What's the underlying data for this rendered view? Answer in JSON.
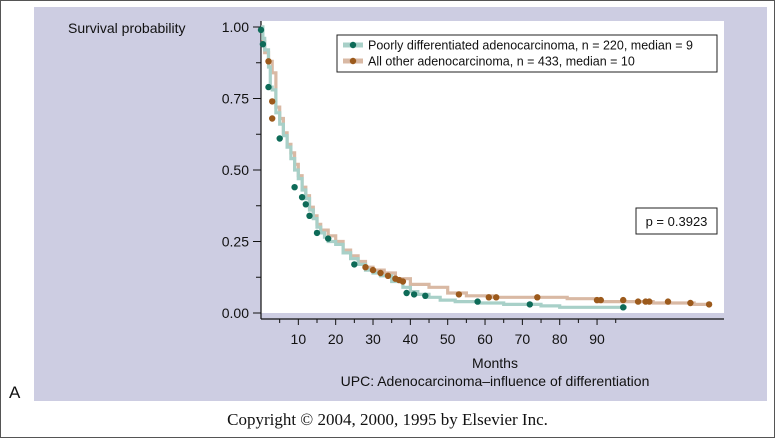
{
  "figure": {
    "panel_letter": "A",
    "copyright": "Copyright © 2004, 2000, 1995 by Elsevier Inc."
  },
  "chart_data": {
    "type": "line",
    "subtype": "kaplan-meier survival curve",
    "title": "UPC: Adenocarcinoma–influence of differentiation",
    "xlabel": "Months",
    "ylabel": "Survival probability",
    "xlim": [
      0,
      124
    ],
    "ylim": [
      0,
      1
    ],
    "x_ticks": [
      10,
      20,
      30,
      40,
      50,
      60,
      70,
      80,
      90
    ],
    "y_ticks": [
      0,
      0.25,
      0.5,
      0.75,
      1.0
    ],
    "y_tick_labels": [
      "0.00",
      "0.25",
      "0.50",
      "0.75",
      "1.00"
    ],
    "grid": false,
    "legend_position": "top-right",
    "annotation": "p = 0.3923",
    "series": [
      {
        "name": "Poorly differentiated adenocarcinoma, n = 220, median = 9",
        "line_color": "#a8d0c8",
        "marker_color": "#0e6b58",
        "steps": [
          [
            0,
            1.0
          ],
          [
            0.5,
            0.96
          ],
          [
            1,
            0.92
          ],
          [
            2,
            0.86
          ],
          [
            2.5,
            0.79
          ],
          [
            3,
            0.78
          ],
          [
            4,
            0.7
          ],
          [
            5,
            0.66
          ],
          [
            6,
            0.62
          ],
          [
            7,
            0.58
          ],
          [
            8,
            0.54
          ],
          [
            9,
            0.5
          ],
          [
            10,
            0.47
          ],
          [
            11,
            0.43
          ],
          [
            12,
            0.4
          ],
          [
            13,
            0.36
          ],
          [
            14,
            0.33
          ],
          [
            15,
            0.3
          ],
          [
            16,
            0.28
          ],
          [
            17,
            0.265
          ],
          [
            18,
            0.25
          ],
          [
            20,
            0.24
          ],
          [
            22,
            0.21
          ],
          [
            24,
            0.19
          ],
          [
            26,
            0.17
          ],
          [
            28,
            0.15
          ],
          [
            30,
            0.14
          ],
          [
            32,
            0.13
          ],
          [
            35,
            0.11
          ],
          [
            38,
            0.09
          ],
          [
            40,
            0.075
          ],
          [
            42,
            0.065
          ],
          [
            45,
            0.055
          ],
          [
            48,
            0.045
          ],
          [
            52,
            0.04
          ],
          [
            58,
            0.035
          ],
          [
            65,
            0.03
          ],
          [
            72,
            0.03
          ],
          [
            75,
            0.025
          ],
          [
            80,
            0.02
          ],
          [
            90,
            0.02
          ],
          [
            98,
            0.02
          ]
        ],
        "censor_points": [
          [
            0,
            0.99
          ],
          [
            0.5,
            0.94
          ],
          [
            2,
            0.79
          ],
          [
            5,
            0.61
          ],
          [
            9,
            0.44
          ],
          [
            11,
            0.405
          ],
          [
            12,
            0.38
          ],
          [
            13,
            0.34
          ],
          [
            15,
            0.28
          ],
          [
            18,
            0.26
          ],
          [
            25,
            0.17
          ],
          [
            39,
            0.07
          ],
          [
            41,
            0.065
          ],
          [
            44,
            0.06
          ],
          [
            58,
            0.04
          ],
          [
            72,
            0.03
          ],
          [
            97,
            0.02
          ]
        ]
      },
      {
        "name": "All other adenocarcinoma, n = 433, median = 10",
        "line_color": "#d9b9a4",
        "marker_color": "#9c5a1c",
        "steps": [
          [
            0,
            1.0
          ],
          [
            0.5,
            0.95
          ],
          [
            1,
            0.91
          ],
          [
            2,
            0.88
          ],
          [
            3,
            0.84
          ],
          [
            4,
            0.72
          ],
          [
            5,
            0.68
          ],
          [
            6,
            0.63
          ],
          [
            7,
            0.59
          ],
          [
            8,
            0.56
          ],
          [
            9,
            0.52
          ],
          [
            10,
            0.48
          ],
          [
            11,
            0.44
          ],
          [
            12,
            0.41
          ],
          [
            13,
            0.37
          ],
          [
            14,
            0.34
          ],
          [
            15,
            0.31
          ],
          [
            16,
            0.29
          ],
          [
            18,
            0.27
          ],
          [
            20,
            0.25
          ],
          [
            22,
            0.22
          ],
          [
            24,
            0.2
          ],
          [
            26,
            0.18
          ],
          [
            28,
            0.16
          ],
          [
            30,
            0.15
          ],
          [
            33,
            0.14
          ],
          [
            36,
            0.12
          ],
          [
            40,
            0.1
          ],
          [
            45,
            0.09
          ],
          [
            50,
            0.07
          ],
          [
            55,
            0.06
          ],
          [
            62,
            0.055
          ],
          [
            70,
            0.055
          ],
          [
            75,
            0.055
          ],
          [
            82,
            0.05
          ],
          [
            90,
            0.04
          ],
          [
            100,
            0.04
          ],
          [
            105,
            0.035
          ],
          [
            110,
            0.035
          ],
          [
            116,
            0.03
          ],
          [
            120,
            0.03
          ]
        ],
        "censor_points": [
          [
            2,
            0.88
          ],
          [
            3,
            0.74
          ],
          [
            3,
            0.68
          ],
          [
            28,
            0.16
          ],
          [
            30,
            0.15
          ],
          [
            32,
            0.14
          ],
          [
            34,
            0.13
          ],
          [
            36,
            0.12
          ],
          [
            37,
            0.115
          ],
          [
            38,
            0.11
          ],
          [
            53,
            0.065
          ],
          [
            61,
            0.055
          ],
          [
            63,
            0.055
          ],
          [
            74,
            0.055
          ],
          [
            90,
            0.045
          ],
          [
            91,
            0.045
          ],
          [
            97,
            0.045
          ],
          [
            101,
            0.04
          ],
          [
            103,
            0.04
          ],
          [
            104,
            0.04
          ],
          [
            109,
            0.04
          ],
          [
            115,
            0.035
          ],
          [
            120,
            0.03
          ]
        ]
      }
    ]
  }
}
